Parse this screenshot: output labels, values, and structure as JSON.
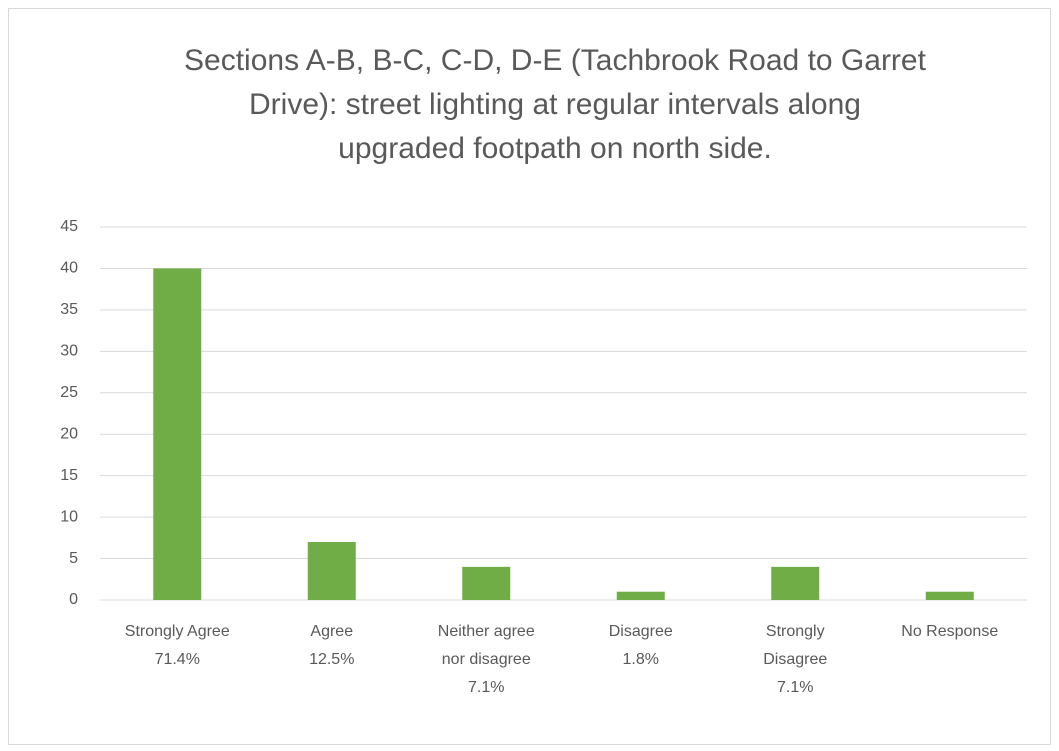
{
  "chart_data": {
    "type": "bar",
    "title": [
      "Sections A-B, B-C, C-D, D-E (Tachbrook Road to Garret",
      "Drive): street lighting at regular intervals along",
      "upgraded footpath on north side."
    ],
    "categories": [
      [
        "Strongly Agree",
        "71.4%"
      ],
      [
        "Agree",
        "12.5%"
      ],
      [
        "Neither agree",
        "nor disagree",
        "7.1%"
      ],
      [
        "Disagree",
        "1.8%"
      ],
      [
        "Strongly",
        "Disagree",
        "7.1%"
      ],
      [
        "No Response"
      ]
    ],
    "values": [
      40,
      7,
      4,
      1,
      4,
      1
    ],
    "color": "#70ad47",
    "ylim": [
      0,
      45
    ],
    "yticks": [
      0,
      5,
      10,
      15,
      20,
      25,
      30,
      35,
      40,
      45
    ],
    "grid": true
  }
}
